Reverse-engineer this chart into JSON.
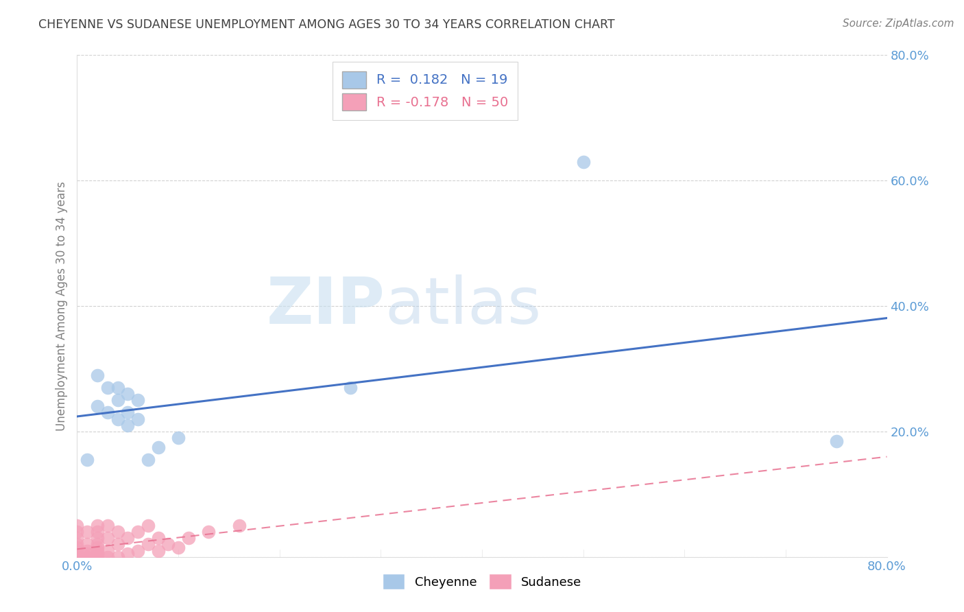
{
  "title": "CHEYENNE VS SUDANESE UNEMPLOYMENT AMONG AGES 30 TO 34 YEARS CORRELATION CHART",
  "source": "Source: ZipAtlas.com",
  "ylabel": "Unemployment Among Ages 30 to 34 years",
  "xlabel": "",
  "xlim": [
    0.0,
    0.8
  ],
  "ylim": [
    0.0,
    0.8
  ],
  "xticks": [
    0.0,
    0.1,
    0.2,
    0.3,
    0.4,
    0.5,
    0.6,
    0.7,
    0.8
  ],
  "xticklabels": [
    "0.0%",
    "",
    "",
    "",
    "",
    "",
    "",
    "",
    "80.0%"
  ],
  "yticks": [
    0.0,
    0.2,
    0.4,
    0.6,
    0.8
  ],
  "yticklabels": [
    "",
    "20.0%",
    "40.0%",
    "60.0%",
    "80.0%"
  ],
  "cheyenne_color": "#a8c8e8",
  "sudanese_color": "#f4a0b8",
  "cheyenne_line_color": "#4472c4",
  "sudanese_line_color": "#e87090",
  "legend_R_cheyenne": "R =  0.182",
  "legend_N_cheyenne": "N = 19",
  "legend_R_sudanese": "R = -0.178",
  "legend_N_sudanese": "N = 50",
  "background_color": "#ffffff",
  "watermark_zip": "ZIP",
  "watermark_atlas": "atlas",
  "cheyenne_x": [
    0.01,
    0.02,
    0.02,
    0.03,
    0.03,
    0.04,
    0.04,
    0.04,
    0.05,
    0.05,
    0.05,
    0.06,
    0.06,
    0.07,
    0.08,
    0.1,
    0.27,
    0.5,
    0.75
  ],
  "cheyenne_y": [
    0.155,
    0.24,
    0.29,
    0.23,
    0.27,
    0.22,
    0.25,
    0.27,
    0.21,
    0.23,
    0.26,
    0.22,
    0.25,
    0.155,
    0.175,
    0.19,
    0.27,
    0.63,
    0.185
  ],
  "sudanese_x": [
    0.0,
    0.0,
    0.0,
    0.0,
    0.0,
    0.0,
    0.0,
    0.0,
    0.0,
    0.0,
    0.0,
    0.0,
    0.0,
    0.0,
    0.0,
    0.01,
    0.01,
    0.01,
    0.01,
    0.01,
    0.01,
    0.02,
    0.02,
    0.02,
    0.02,
    0.02,
    0.02,
    0.02,
    0.02,
    0.02,
    0.03,
    0.03,
    0.03,
    0.03,
    0.04,
    0.04,
    0.04,
    0.05,
    0.05,
    0.06,
    0.06,
    0.07,
    0.07,
    0.08,
    0.08,
    0.09,
    0.1,
    0.11,
    0.13,
    0.16
  ],
  "sudanese_y": [
    0.0,
    0.0,
    0.0,
    0.0,
    0.0,
    0.0,
    0.0,
    0.0,
    0.005,
    0.01,
    0.015,
    0.02,
    0.03,
    0.04,
    0.05,
    0.0,
    0.0,
    0.005,
    0.01,
    0.02,
    0.04,
    0.0,
    0.0,
    0.005,
    0.01,
    0.015,
    0.02,
    0.03,
    0.04,
    0.05,
    0.0,
    0.01,
    0.03,
    0.05,
    0.0,
    0.02,
    0.04,
    0.005,
    0.03,
    0.01,
    0.04,
    0.02,
    0.05,
    0.01,
    0.03,
    0.02,
    0.015,
    0.03,
    0.04,
    0.05
  ],
  "grid_color": "#cccccc",
  "title_color": "#404040",
  "axis_label_color": "#808080",
  "tick_color": "#5b9bd5",
  "cheyenne_legend_label": "Cheyenne",
  "sudanese_legend_label": "Sudanese"
}
